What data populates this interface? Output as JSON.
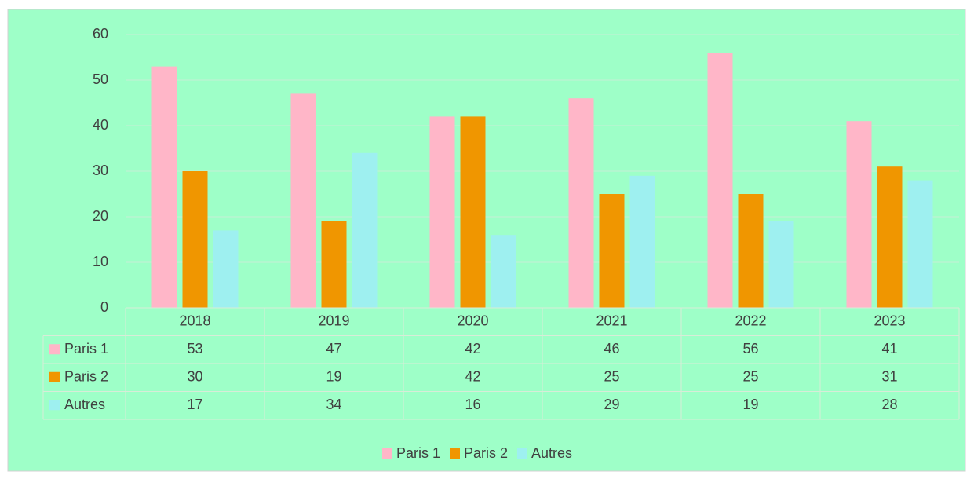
{
  "chart_data": {
    "type": "bar",
    "categories": [
      "2018",
      "2019",
      "2020",
      "2021",
      "2022",
      "2023"
    ],
    "series": [
      {
        "name": "Paris 1",
        "color": "#ffb6c8",
        "values": [
          53,
          47,
          42,
          46,
          56,
          41
        ]
      },
      {
        "name": "Paris 2",
        "color": "#f09600",
        "values": [
          30,
          19,
          42,
          25,
          25,
          31
        ]
      },
      {
        "name": "Autres",
        "color": "#9ef0f0",
        "values": [
          17,
          34,
          16,
          29,
          19,
          28
        ]
      }
    ],
    "ylim": [
      0,
      60
    ],
    "yticks": [
      0,
      10,
      20,
      30,
      40,
      50,
      60
    ],
    "grid": true,
    "legend": "bottom",
    "data_table": true
  }
}
